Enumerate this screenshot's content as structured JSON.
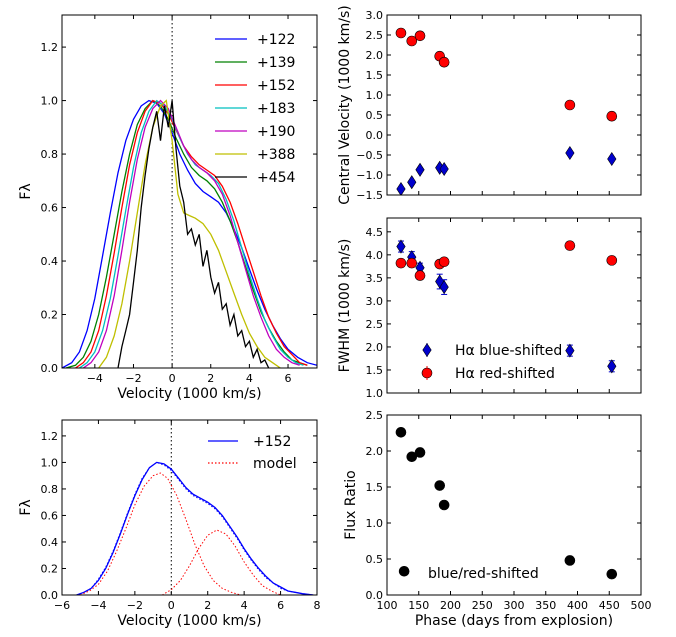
{
  "charts": {
    "profiles": {
      "type": "line",
      "xlabel": "Velocity (1000 km/s)",
      "ylabel": "Fλ",
      "xlim": [
        -5.7,
        7.5
      ],
      "ylim": [
        0,
        1.32
      ],
      "xticks": [
        -4,
        -2,
        0,
        2,
        4,
        6
      ],
      "yticks": [
        0.0,
        0.2,
        0.4,
        0.6,
        0.8,
        1.0,
        1.2
      ],
      "zero_line": "dotted",
      "series": [
        {
          "name": "+122",
          "color": "#0000ff",
          "x": [
            -5.7,
            -5.2,
            -4.8,
            -4.4,
            -4.0,
            -3.6,
            -3.2,
            -2.8,
            -2.4,
            -2.0,
            -1.6,
            -1.2,
            -0.8,
            -0.4,
            0.0,
            0.4,
            0.8,
            1.2,
            1.6,
            2.0,
            2.4,
            2.8,
            3.2,
            3.6,
            4.0,
            4.4,
            4.8,
            5.2,
            5.6,
            6.0,
            6.5,
            7.0,
            7.5
          ],
          "y": [
            0.0,
            0.02,
            0.06,
            0.14,
            0.26,
            0.42,
            0.58,
            0.73,
            0.85,
            0.93,
            0.98,
            1.0,
            0.99,
            0.95,
            0.88,
            0.8,
            0.74,
            0.69,
            0.66,
            0.64,
            0.62,
            0.58,
            0.52,
            0.45,
            0.37,
            0.29,
            0.22,
            0.16,
            0.11,
            0.07,
            0.04,
            0.02,
            0.01
          ]
        },
        {
          "name": "+139",
          "color": "#008000",
          "x": [
            -5.5,
            -5.0,
            -4.6,
            -4.2,
            -3.8,
            -3.4,
            -3.0,
            -2.6,
            -2.2,
            -1.8,
            -1.4,
            -1.0,
            -0.6,
            -0.2,
            0.2,
            0.6,
            1.0,
            1.4,
            1.8,
            2.2,
            2.6,
            3.0,
            3.4,
            3.8,
            4.2,
            4.6,
            5.0,
            5.4,
            5.8,
            6.2,
            6.6,
            7.0
          ],
          "y": [
            0.0,
            0.01,
            0.04,
            0.1,
            0.2,
            0.34,
            0.5,
            0.66,
            0.8,
            0.91,
            0.97,
            1.0,
            0.98,
            0.93,
            0.86,
            0.8,
            0.75,
            0.72,
            0.7,
            0.67,
            0.62,
            0.55,
            0.47,
            0.38,
            0.29,
            0.21,
            0.15,
            0.1,
            0.06,
            0.03,
            0.02,
            0.01
          ]
        },
        {
          "name": "+152",
          "color": "#ff0000",
          "x": [
            -5.0,
            -4.6,
            -4.2,
            -3.8,
            -3.4,
            -3.0,
            -2.6,
            -2.2,
            -1.8,
            -1.4,
            -1.0,
            -0.6,
            -0.2,
            0.2,
            0.6,
            1.0,
            1.4,
            1.8,
            2.2,
            2.6,
            3.0,
            3.4,
            3.8,
            4.2,
            4.6,
            5.0,
            5.4,
            5.8,
            6.2,
            6.6,
            7.0
          ],
          "y": [
            0.0,
            0.02,
            0.06,
            0.14,
            0.27,
            0.43,
            0.6,
            0.76,
            0.88,
            0.96,
            1.0,
            0.99,
            0.95,
            0.89,
            0.83,
            0.79,
            0.76,
            0.74,
            0.72,
            0.68,
            0.62,
            0.54,
            0.45,
            0.36,
            0.27,
            0.19,
            0.13,
            0.08,
            0.05,
            0.02,
            0.01
          ]
        },
        {
          "name": "+183",
          "color": "#00bfbf",
          "x": [
            -4.8,
            -4.4,
            -4.0,
            -3.6,
            -3.2,
            -2.8,
            -2.4,
            -2.0,
            -1.6,
            -1.2,
            -0.8,
            -0.4,
            0.0,
            0.4,
            0.8,
            1.2,
            1.6,
            2.0,
            2.4,
            2.8,
            3.2,
            3.6,
            4.0,
            4.4,
            4.8,
            5.2,
            5.6,
            6.0,
            6.4,
            6.8
          ],
          "y": [
            0.0,
            0.02,
            0.06,
            0.14,
            0.26,
            0.42,
            0.59,
            0.75,
            0.88,
            0.96,
            1.0,
            0.98,
            0.93,
            0.86,
            0.8,
            0.76,
            0.74,
            0.72,
            0.69,
            0.63,
            0.55,
            0.45,
            0.35,
            0.26,
            0.18,
            0.12,
            0.07,
            0.04,
            0.02,
            0.01
          ]
        },
        {
          "name": "+190",
          "color": "#bf00bf",
          "x": [
            -4.6,
            -4.2,
            -3.8,
            -3.4,
            -3.0,
            -2.6,
            -2.2,
            -1.8,
            -1.4,
            -1.0,
            -0.6,
            -0.2,
            0.2,
            0.6,
            1.0,
            1.4,
            1.8,
            2.2,
            2.6,
            3.0,
            3.4,
            3.8,
            4.2,
            4.6,
            5.0,
            5.4,
            5.8,
            6.2,
            6.6
          ],
          "y": [
            0.0,
            0.02,
            0.06,
            0.14,
            0.27,
            0.44,
            0.62,
            0.78,
            0.9,
            0.97,
            1.0,
            0.97,
            0.9,
            0.83,
            0.78,
            0.75,
            0.73,
            0.7,
            0.65,
            0.57,
            0.47,
            0.37,
            0.27,
            0.19,
            0.12,
            0.07,
            0.04,
            0.02,
            0.01
          ]
        },
        {
          "name": "+388",
          "color": "#bfbf00",
          "x": [
            -3.8,
            -3.4,
            -3.0,
            -2.6,
            -2.2,
            -1.8,
            -1.4,
            -1.0,
            -0.6,
            -0.3,
            0.0,
            0.3,
            0.6,
            0.9,
            1.2,
            1.6,
            2.0,
            2.4,
            2.8,
            3.2,
            3.6,
            4.0,
            4.4,
            4.8,
            5.2,
            5.6
          ],
          "y": [
            0.0,
            0.04,
            0.12,
            0.24,
            0.4,
            0.58,
            0.76,
            0.9,
            0.98,
            1.0,
            0.85,
            0.65,
            0.58,
            0.57,
            0.56,
            0.54,
            0.5,
            0.44,
            0.36,
            0.28,
            0.2,
            0.13,
            0.08,
            0.04,
            0.02,
            0.0
          ]
        },
        {
          "name": "+454",
          "color": "#000000",
          "x": [
            -2.8,
            -2.6,
            -2.4,
            -2.2,
            -2.0,
            -1.8,
            -1.6,
            -1.4,
            -1.2,
            -1.0,
            -0.8,
            -0.6,
            -0.4,
            -0.2,
            0.0,
            0.2,
            0.4,
            0.6,
            0.8,
            1.0,
            1.2,
            1.4,
            1.6,
            1.8,
            2.0,
            2.2,
            2.4,
            2.6,
            2.8,
            3.0,
            3.2,
            3.4,
            3.6,
            3.8,
            4.0,
            4.2,
            4.4,
            4.6,
            4.8,
            5.0
          ],
          "y": [
            0.0,
            0.08,
            0.14,
            0.2,
            0.32,
            0.44,
            0.6,
            0.72,
            0.82,
            0.9,
            0.96,
            0.85,
            0.98,
            0.9,
            1.0,
            0.82,
            0.68,
            0.62,
            0.5,
            0.52,
            0.46,
            0.5,
            0.38,
            0.44,
            0.34,
            0.28,
            0.32,
            0.22,
            0.24,
            0.16,
            0.2,
            0.12,
            0.14,
            0.08,
            0.1,
            0.04,
            0.07,
            0.02,
            0.03,
            0.0
          ]
        }
      ]
    },
    "decomposition": {
      "type": "line",
      "xlabel": "Velocity (1000 km/s)",
      "ylabel": "Fλ",
      "xlim": [
        -6,
        8
      ],
      "ylim": [
        0,
        1.32
      ],
      "xticks": [
        -6,
        -4,
        -2,
        0,
        2,
        4,
        6,
        8
      ],
      "yticks": [
        0.0,
        0.2,
        0.4,
        0.6,
        0.8,
        1.0,
        1.2
      ],
      "zero_line": "dotted",
      "series": [
        {
          "name": "+152",
          "style": "solid",
          "color": "#0000ff",
          "x": [
            -5.2,
            -4.8,
            -4.4,
            -4.0,
            -3.6,
            -3.2,
            -2.8,
            -2.4,
            -2.0,
            -1.6,
            -1.2,
            -0.8,
            -0.4,
            0.0,
            0.4,
            0.8,
            1.2,
            1.6,
            2.0,
            2.4,
            2.8,
            3.2,
            3.6,
            4.0,
            4.4,
            4.8,
            5.2,
            5.6,
            6.0,
            6.4,
            6.8,
            7.2,
            7.8
          ],
          "y": [
            0.0,
            0.02,
            0.05,
            0.11,
            0.2,
            0.32,
            0.46,
            0.61,
            0.75,
            0.87,
            0.96,
            1.0,
            0.99,
            0.95,
            0.88,
            0.81,
            0.76,
            0.73,
            0.7,
            0.66,
            0.6,
            0.52,
            0.44,
            0.35,
            0.27,
            0.2,
            0.14,
            0.09,
            0.06,
            0.03,
            0.02,
            0.01,
            0.0
          ]
        },
        {
          "name": "model",
          "style": "dotted",
          "color": "#0000ff",
          "x": [
            -5.2,
            -4.8,
            -4.4,
            -4.0,
            -3.6,
            -3.2,
            -2.8,
            -2.4,
            -2.0,
            -1.6,
            -1.2,
            -0.8,
            -0.4,
            0.0,
            0.4,
            0.8,
            1.2,
            1.6,
            2.0,
            2.4,
            2.8,
            3.2,
            3.6,
            4.0,
            4.4,
            4.8,
            5.2,
            5.6,
            6.0,
            6.4,
            6.8,
            7.2,
            7.8
          ],
          "y": [
            0.0,
            0.02,
            0.05,
            0.12,
            0.21,
            0.33,
            0.47,
            0.62,
            0.76,
            0.88,
            0.96,
            1.0,
            0.98,
            0.94,
            0.87,
            0.8,
            0.75,
            0.72,
            0.69,
            0.65,
            0.59,
            0.51,
            0.43,
            0.34,
            0.26,
            0.19,
            0.13,
            0.09,
            0.05,
            0.03,
            0.02,
            0.01,
            0.0
          ]
        },
        {
          "name": "",
          "style": "dotted",
          "color": "#ff0000",
          "x": [
            -5.0,
            -4.5,
            -4.0,
            -3.5,
            -3.0,
            -2.5,
            -2.0,
            -1.5,
            -1.0,
            -0.6,
            -0.2,
            0.3,
            0.8,
            1.3,
            1.8,
            2.3,
            2.8,
            3.3,
            3.8
          ],
          "y": [
            0.0,
            0.03,
            0.08,
            0.18,
            0.33,
            0.5,
            0.68,
            0.82,
            0.9,
            0.92,
            0.88,
            0.75,
            0.57,
            0.38,
            0.22,
            0.11,
            0.05,
            0.02,
            0.0
          ]
        },
        {
          "name": "",
          "style": "dotted",
          "color": "#ff0000",
          "x": [
            -0.5,
            0.0,
            0.5,
            1.0,
            1.5,
            2.0,
            2.5,
            3.0,
            3.5,
            4.0,
            4.5,
            5.0,
            5.5,
            6.0
          ],
          "y": [
            0.0,
            0.04,
            0.11,
            0.22,
            0.35,
            0.45,
            0.49,
            0.46,
            0.37,
            0.25,
            0.15,
            0.07,
            0.03,
            0.0
          ]
        }
      ]
    },
    "central_velocity": {
      "type": "scatter",
      "ylabel": "Central Velocity (1000 km/s)",
      "xlim": [
        100,
        500
      ],
      "ylim": [
        -1.5,
        3.0
      ],
      "yticks": [
        -1.5,
        -1.0,
        -0.5,
        0.0,
        0.5,
        1.0,
        1.5,
        2.0,
        2.5,
        3.0
      ],
      "series": [
        {
          "name": "Hα blue-shifted",
          "marker": "diamond",
          "color": "#0000cc",
          "x": [
            122,
            139,
            152,
            183,
            190,
            388,
            454
          ],
          "y": [
            -1.35,
            -1.18,
            -0.87,
            -0.82,
            -0.85,
            -0.45,
            -0.6
          ]
        },
        {
          "name": "Hα red-shifted",
          "marker": "circle",
          "color": "#ff0000",
          "x": [
            122,
            139,
            152,
            183,
            190,
            388,
            454
          ],
          "y": [
            2.55,
            2.35,
            2.48,
            1.97,
            1.82,
            0.75,
            0.47
          ]
        }
      ]
    },
    "fwhm": {
      "type": "scatter",
      "ylabel": "FWHM (1000 km/s)",
      "xlim": [
        100,
        500
      ],
      "ylim": [
        1.0,
        4.8
      ],
      "yticks": [
        1.0,
        1.5,
        2.0,
        2.5,
        3.0,
        3.5,
        4.0,
        4.5
      ],
      "legend_position": "bottom-center",
      "series": [
        {
          "name": "Hα blue-shifted",
          "marker": "diamond",
          "color": "#0000cc",
          "x": [
            122,
            139,
            152,
            183,
            190,
            388,
            454
          ],
          "y": [
            4.18,
            3.95,
            3.72,
            3.42,
            3.3,
            1.92,
            1.58
          ],
          "err": [
            0.12,
            0.12,
            0.1,
            0.16,
            0.16,
            0.12,
            0.12
          ]
        },
        {
          "name": "Hα red-shifted",
          "marker": "circle",
          "color": "#ff0000",
          "x": [
            122,
            139,
            152,
            183,
            190,
            388,
            454
          ],
          "y": [
            3.82,
            3.82,
            3.55,
            3.8,
            3.85,
            4.2,
            3.88
          ],
          "err": [
            0.08,
            0.08,
            0.08,
            0.08,
            0.08,
            0.08,
            0.08
          ]
        }
      ]
    },
    "flux_ratio": {
      "type": "scatter",
      "xlabel": "Phase (days from explosion)",
      "ylabel": "Flux Ratio",
      "xlim": [
        100,
        500
      ],
      "ylim": [
        0.0,
        2.5
      ],
      "xticks": [
        100,
        150,
        200,
        250,
        300,
        350,
        400,
        450,
        500
      ],
      "yticks": [
        0.0,
        0.5,
        1.0,
        1.5,
        2.0,
        2.5
      ],
      "annotation": "blue/red-shifted",
      "series": [
        {
          "name": "",
          "marker": "circle",
          "color": "#000000",
          "x": [
            122,
            127,
            139,
            152,
            183,
            190,
            388,
            454
          ],
          "y": [
            2.26,
            0.33,
            1.92,
            1.98,
            1.52,
            1.25,
            0.48,
            0.29
          ]
        }
      ]
    }
  }
}
